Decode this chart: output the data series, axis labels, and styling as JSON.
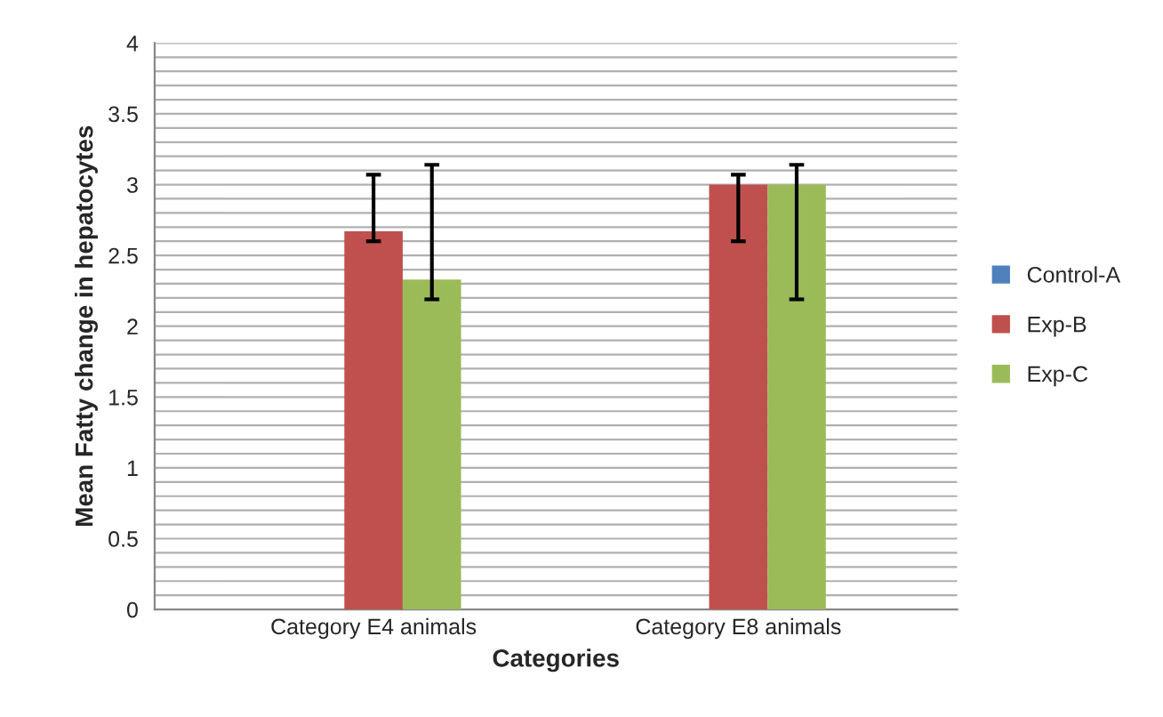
{
  "chart_data": {
    "type": "bar",
    "xlabel": "Categories",
    "ylabel": "Mean Fatty change in hepatocytes",
    "categories": [
      "Category E4 animals",
      "Category E8 animals"
    ],
    "series": [
      {
        "name": "Control-A",
        "color": "#4f81bd",
        "values": [
          null,
          null
        ]
      },
      {
        "name": "Exp-B",
        "color": "#c0504d",
        "values": [
          2.67,
          3.0
        ],
        "errors": [
          [
            2.6,
            3.07
          ],
          [
            2.6,
            3.07
          ]
        ]
      },
      {
        "name": "Exp-C",
        "color": "#9bbb59",
        "values": [
          2.33,
          3.0
        ],
        "errors": [
          [
            2.19,
            3.14
          ],
          [
            2.19,
            3.14
          ]
        ]
      }
    ],
    "ylim": [
      0,
      4
    ],
    "yticks": [
      0,
      {
        "value": 0.1,
        "label": null
      },
      {
        "value": 0.2,
        "label": null
      },
      {
        "value": 0.3,
        "label": null
      },
      {
        "value": 0.4,
        "label": null
      },
      0.5,
      {
        "value": 0.6,
        "label": null
      },
      {
        "value": 0.7,
        "label": null
      },
      {
        "value": 0.8,
        "label": null
      },
      {
        "value": 0.9,
        "label": null
      },
      1,
      {
        "value": 1.1,
        "label": null
      },
      {
        "value": 1.2,
        "label": null
      },
      {
        "value": 1.3,
        "label": null
      },
      {
        "value": 1.4,
        "label": null
      },
      1.5,
      {
        "value": 1.6,
        "label": null
      },
      {
        "value": 1.7,
        "label": null
      },
      {
        "value": 1.8,
        "label": null
      },
      {
        "value": 1.9,
        "label": null
      },
      2,
      {
        "value": 2.1,
        "label": null
      },
      {
        "value": 2.2,
        "label": null
      },
      {
        "value": 2.3,
        "label": null
      },
      {
        "value": 2.4,
        "label": null
      },
      2.5,
      {
        "value": 2.6,
        "label": null
      },
      {
        "value": 2.7,
        "label": null
      },
      {
        "value": 2.8,
        "label": null
      },
      {
        "value": 2.9,
        "label": null
      },
      3,
      {
        "value": 3.1,
        "label": null
      },
      {
        "value": 3.2,
        "label": null
      },
      {
        "value": 3.3,
        "label": null
      },
      {
        "value": 3.4,
        "label": null
      },
      3.5,
      {
        "value": 3.6,
        "label": null
      },
      {
        "value": 3.7,
        "label": null
      },
      {
        "value": 3.8,
        "label": null
      },
      {
        "value": 3.9,
        "label": null
      },
      4
    ],
    "grid": "y",
    "legend": "right"
  }
}
